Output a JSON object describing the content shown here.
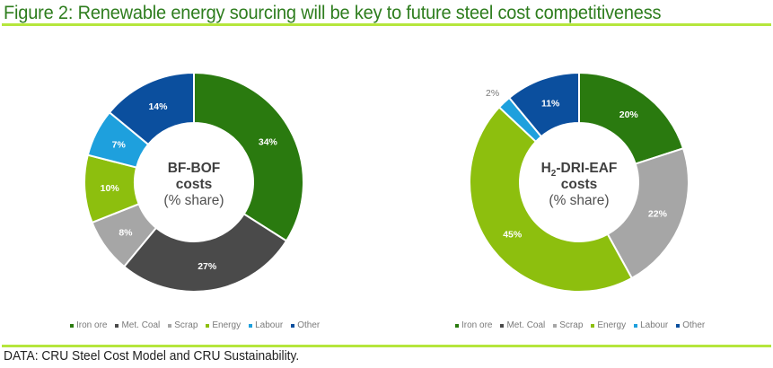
{
  "title": "Figure 2: Renewable energy sourcing will be key to future steel cost competitiveness",
  "source": "DATA: CRU Steel Cost Model and CRU Sustainability.",
  "colors": {
    "title": "#2e7d1e",
    "rule": "#b5e63c",
    "Iron ore": "#2a7a0f",
    "Met. Coal": "#4a4a4a",
    "Scrap": "#a6a6a6",
    "Energy": "#8dbf0e",
    "Labour": "#1ea0dd",
    "Other": "#0b4f9e"
  },
  "chart_data": [
    {
      "type": "pie",
      "donut": true,
      "title_line1": "BF-BOF",
      "title_line2": "costs",
      "title_line3": "(% share)",
      "categories": [
        "Iron ore",
        "Met. Coal",
        "Scrap",
        "Energy",
        "Labour",
        "Other"
      ],
      "values": [
        34,
        27,
        8,
        10,
        7,
        14
      ],
      "labels": [
        "34%",
        "27%",
        "8%",
        "10%",
        "7%",
        "14%"
      ],
      "legend": [
        "Iron ore",
        "Met. Coal",
        "Scrap",
        "Energy",
        "Labour",
        "Other"
      ],
      "legend_position": "bottom"
    },
    {
      "type": "pie",
      "donut": true,
      "title_line1": "H",
      "title_sub": "2",
      "title_line1_rest": "-DRI-EAF",
      "title_line2": "costs",
      "title_line3": "(% share)",
      "categories": [
        "Iron ore",
        "Met. Coal",
        "Scrap",
        "Energy",
        "Labour",
        "Other"
      ],
      "values": [
        20,
        0,
        22,
        45,
        2,
        11
      ],
      "labels": [
        "20%",
        "",
        "22%",
        "45%",
        "2%",
        "11%"
      ],
      "legend": [
        "Iron ore",
        "Met. Coal",
        "Scrap",
        "Energy",
        "Labour",
        "Other"
      ],
      "legend_position": "bottom"
    }
  ]
}
